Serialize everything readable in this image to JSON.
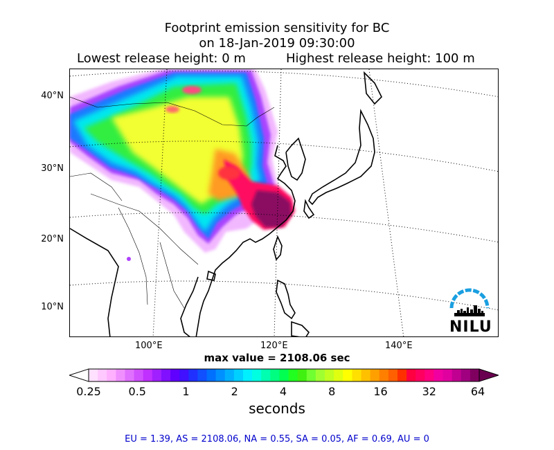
{
  "title": {
    "line1": "Footprint emission sensitivity for BC",
    "line2": "on 18-Jan-2019 09:30:00",
    "lowest": "Lowest release height: 0 m",
    "highest": "Highest release height: 100 m"
  },
  "map": {
    "lat_labels": [
      "40°N",
      "30°N",
      "20°N",
      "10°N"
    ],
    "lon_labels": [
      "100°E",
      "120°E",
      "140°E"
    ]
  },
  "max_value": "max value = 2108.06 sec",
  "colorbar": {
    "ticks": [
      "0.25",
      "0.5",
      "1",
      "2",
      "4",
      "8",
      "16",
      "32",
      "64"
    ],
    "units": "seconds",
    "colors": [
      "#ffe0ff",
      "#ffc8ff",
      "#ffb0ff",
      "#f090ff",
      "#e070ff",
      "#d050ff",
      "#c030ff",
      "#a020ff",
      "#8010ff",
      "#6000ff",
      "#4010ff",
      "#2030ff",
      "#1050ff",
      "#0070ff",
      "#0090ff",
      "#00b0ff",
      "#00d0ff",
      "#00f0ff",
      "#00ffe0",
      "#00ffb0",
      "#00ff80",
      "#00ff50",
      "#20ff20",
      "#40f010",
      "#70ff30",
      "#a0ff30",
      "#c0ff20",
      "#e0ff10",
      "#ffff00",
      "#ffe000",
      "#ffc000",
      "#ffa000",
      "#ff8000",
      "#ff6000",
      "#ff3000",
      "#ff0040",
      "#ff0060",
      "#ff0080",
      "#f000a0",
      "#e000a0",
      "#c00090",
      "#a00080",
      "#800060"
    ]
  },
  "summary": "EU = 1.39,  AS = 2108.06,  NA = 0.55,  SA = 0.05,  AF = 0.69,  AU = 0",
  "logo": {
    "text": "NILU",
    "color": "#1a9fe0"
  }
}
